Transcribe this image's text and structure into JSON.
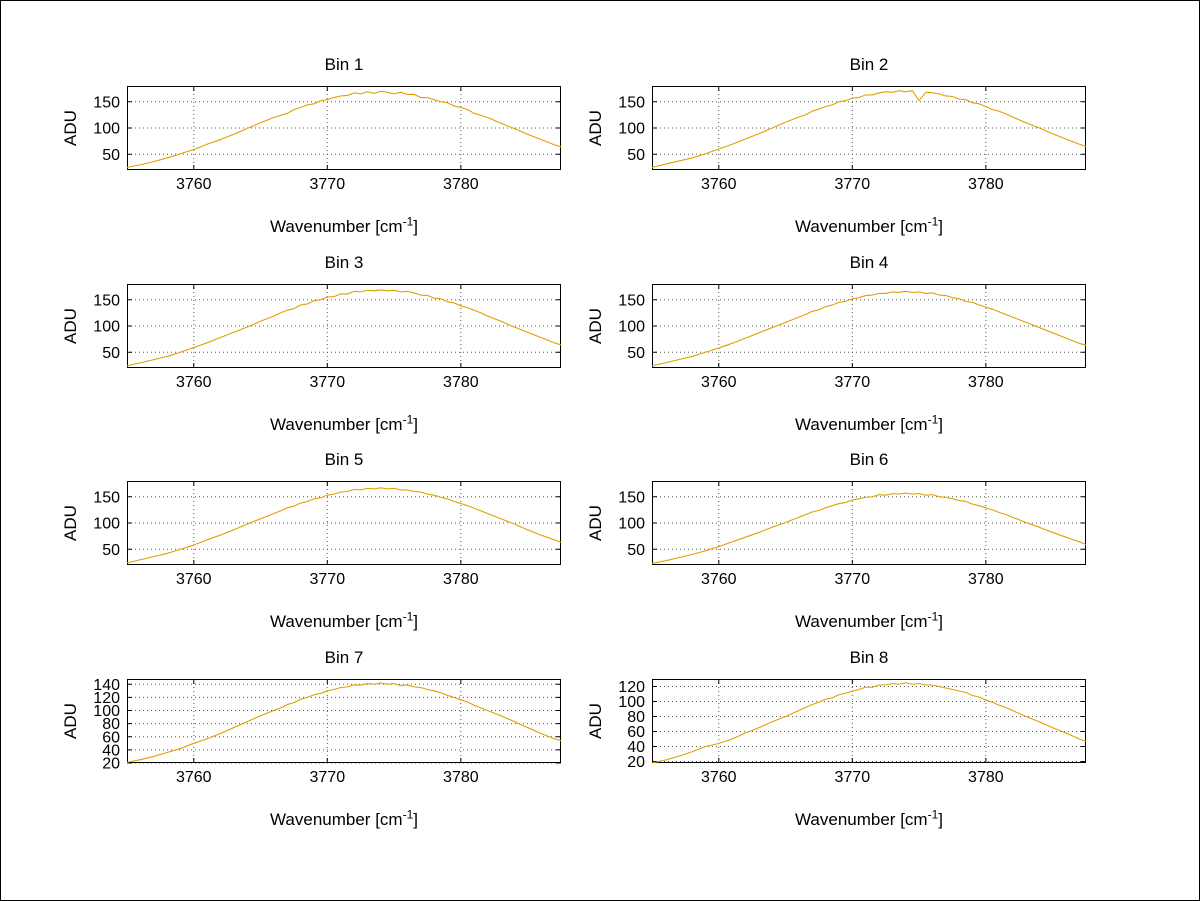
{
  "figure": {
    "background": "#ffffff",
    "border_color": "#000000",
    "axis_color": "#000000",
    "grid_color": "#5a5a5a",
    "line_color": "#e0a000"
  },
  "chart_data": {
    "type": "line",
    "xlabel": {
      "pre": "Wavenumber [cm",
      "sup": "-1",
      "post": "]"
    },
    "ylabel": "ADU",
    "xlim": [
      3755,
      3787.5
    ],
    "xticks": [
      3760,
      3770,
      3780
    ],
    "grid": "dotted",
    "legend": "none",
    "x": [
      3755,
      3756,
      3757,
      3758,
      3759,
      3760,
      3761,
      3762,
      3763,
      3764,
      3765,
      3766,
      3766.5,
      3767,
      3767.5,
      3768,
      3768.5,
      3769,
      3769.5,
      3770,
      3770.5,
      3771,
      3771.5,
      3772,
      3772.5,
      3773,
      3773.5,
      3774,
      3774.5,
      3775,
      3775.5,
      3776,
      3776.5,
      3777,
      3777.5,
      3778,
      3778.5,
      3779,
      3779.5,
      3780,
      3780.5,
      3781,
      3781.5,
      3782,
      3783,
      3784,
      3785,
      3786,
      3787,
      3787.5
    ],
    "series": [
      {
        "name": "Bin 1",
        "ylim": [
          20,
          180
        ],
        "yticks": [
          50,
          100,
          150
        ],
        "values": [
          25,
          30,
          36,
          43,
          51,
          59,
          69,
          78,
          88,
          99,
          110,
          120,
          124,
          128,
          135,
          139,
          144,
          146,
          152,
          154,
          158,
          161,
          162,
          167,
          165,
          169,
          166,
          170,
          168,
          165,
          168,
          164,
          164,
          158,
          158,
          154,
          150,
          148,
          142,
          139,
          135,
          128,
          124,
          120,
          109,
          99,
          88,
          78,
          68,
          64
        ]
      },
      {
        "name": "Bin 2",
        "ylim": [
          20,
          180
        ],
        "yticks": [
          50,
          100,
          150
        ],
        "values": [
          25,
          31,
          37,
          43,
          51,
          60,
          69,
          79,
          89,
          100,
          111,
          121,
          125,
          132,
          136,
          141,
          144,
          150,
          152,
          157,
          158,
          163,
          163,
          167,
          169,
          168,
          171,
          169,
          171,
          152,
          168,
          167,
          165,
          161,
          160,
          155,
          154,
          148,
          146,
          141,
          135,
          132,
          127,
          121,
          110,
          100,
          89,
          79,
          69,
          65
        ]
      },
      {
        "name": "Bin 3",
        "ylim": [
          20,
          180
        ],
        "yticks": [
          50,
          100,
          150
        ],
        "values": [
          24,
          30,
          36,
          42,
          50,
          59,
          68,
          78,
          88,
          98,
          109,
          119,
          125,
          130,
          133,
          140,
          142,
          148,
          150,
          155,
          156,
          161,
          161,
          166,
          165,
          168,
          167,
          169,
          167,
          168,
          165,
          166,
          163,
          159,
          158,
          153,
          152,
          146,
          144,
          138,
          135,
          130,
          125,
          119,
          109,
          98,
          88,
          78,
          68,
          64
        ]
      },
      {
        "name": "Bin 4",
        "ylim": [
          20,
          180
        ],
        "yticks": [
          50,
          100,
          150
        ],
        "values": [
          24,
          30,
          36,
          42,
          50,
          58,
          67,
          77,
          87,
          97,
          107,
          117,
          122,
          128,
          131,
          137,
          140,
          145,
          147,
          152,
          154,
          158,
          159,
          162,
          162,
          165,
          164,
          166,
          164,
          165,
          162,
          163,
          159,
          158,
          154,
          152,
          147,
          145,
          140,
          136,
          132,
          127,
          122,
          117,
          107,
          97,
          87,
          77,
          67,
          63
        ]
      },
      {
        "name": "Bin 5",
        "ylim": [
          20,
          180
        ],
        "yticks": [
          50,
          100,
          150
        ],
        "values": [
          24,
          30,
          36,
          42,
          50,
          58,
          68,
          77,
          87,
          98,
          108,
          118,
          123,
          129,
          132,
          138,
          141,
          146,
          148,
          153,
          155,
          159,
          160,
          164,
          163,
          166,
          165,
          167,
          165,
          166,
          163,
          163,
          160,
          159,
          155,
          153,
          149,
          146,
          141,
          137,
          133,
          128,
          123,
          118,
          108,
          98,
          87,
          77,
          68,
          63
        ]
      },
      {
        "name": "Bin 6",
        "ylim": [
          20,
          180
        ],
        "yticks": [
          50,
          100,
          150
        ],
        "values": [
          23,
          28,
          34,
          40,
          47,
          55,
          64,
          73,
          82,
          92,
          101,
          111,
          116,
          121,
          124,
          129,
          133,
          137,
          139,
          144,
          146,
          149,
          150,
          154,
          153,
          156,
          155,
          157,
          155,
          156,
          153,
          154,
          150,
          149,
          146,
          143,
          141,
          136,
          133,
          129,
          125,
          120,
          116,
          111,
          101,
          92,
          82,
          73,
          64,
          59
        ]
      },
      {
        "name": "Bin 7",
        "ylim": [
          20,
          148
        ],
        "yticks": [
          20,
          40,
          60,
          80,
          100,
          120,
          140
        ],
        "values": [
          21,
          25,
          30,
          36,
          42,
          50,
          57,
          65,
          74,
          83,
          92,
          100,
          104,
          109,
          112,
          117,
          120,
          124,
          126,
          130,
          132,
          135,
          136,
          139,
          139,
          141,
          140,
          142,
          140,
          141,
          138,
          139,
          136,
          135,
          132,
          130,
          127,
          123,
          120,
          116,
          113,
          108,
          104,
          100,
          92,
          83,
          74,
          65,
          57,
          54
        ]
      },
      {
        "name": "Bin 8",
        "ylim": [
          18,
          130
        ],
        "yticks": [
          20,
          40,
          60,
          80,
          100,
          120
        ],
        "values": [
          18,
          22,
          27,
          33,
          40,
          44,
          50,
          58,
          65,
          73,
          80,
          88,
          92,
          96,
          99,
          103,
          105,
          109,
          111,
          114,
          116,
          119,
          119,
          122,
          122,
          124,
          123,
          125,
          123,
          124,
          122,
          122,
          120,
          118,
          116,
          114,
          112,
          108,
          106,
          102,
          99,
          95,
          92,
          88,
          80,
          73,
          65,
          58,
          50,
          47
        ]
      }
    ]
  }
}
